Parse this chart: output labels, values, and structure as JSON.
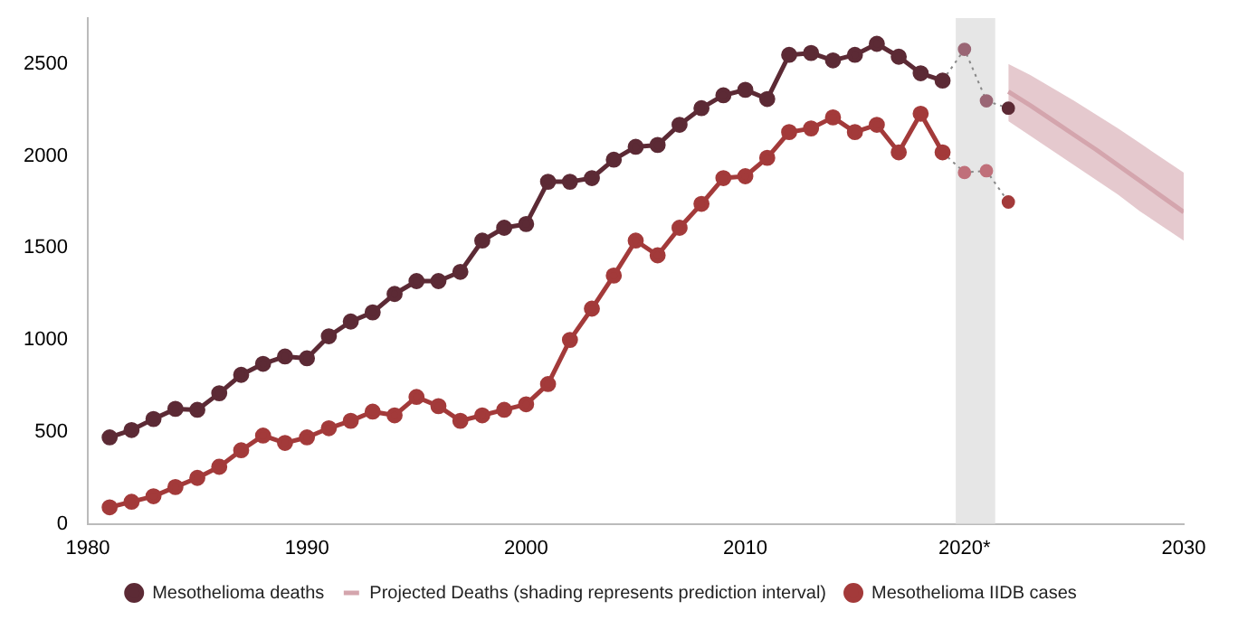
{
  "chart_data": {
    "type": "line",
    "xlim": [
      1980,
      2030
    ],
    "xticks": [
      1980,
      1990,
      2000,
      2010,
      {
        "value": 2020,
        "label": "2020*"
      },
      2030
    ],
    "ylim": [
      0,
      2750
    ],
    "yticks": [
      0,
      500,
      1000,
      1500,
      2000,
      2500
    ],
    "grid": false,
    "legend": "bottom",
    "marker": "circle",
    "bands": [
      {
        "axis": "x",
        "from": 2019.6,
        "to": 2021.4,
        "color": "#e6e6e6"
      }
    ],
    "series": [
      {
        "name": "Mesothelioma deaths",
        "color": "#5c2a35",
        "x": [
          1981,
          1982,
          1983,
          1984,
          1985,
          1986,
          1987,
          1988,
          1989,
          1990,
          1991,
          1992,
          1993,
          1994,
          1995,
          1996,
          1997,
          1998,
          1999,
          2000,
          2001,
          2002,
          2003,
          2004,
          2005,
          2006,
          2007,
          2008,
          2009,
          2010,
          2011,
          2012,
          2013,
          2014,
          2015,
          2016,
          2017,
          2018,
          2019
        ],
        "values": [
          470,
          510,
          570,
          625,
          620,
          710,
          810,
          870,
          910,
          900,
          1020,
          1100,
          1150,
          1250,
          1320,
          1320,
          1370,
          1540,
          1610,
          1630,
          1860,
          1860,
          1880,
          1980,
          2050,
          2060,
          2170,
          2260,
          2330,
          2360,
          2310,
          2550,
          2560,
          2520,
          2550,
          2610,
          2540,
          2450,
          2410
        ]
      },
      {
        "color": "#888888",
        "line_style": "dotted",
        "x": [
          2019,
          2020,
          2021,
          2022
        ],
        "values": [
          2410,
          2580,
          2300,
          2260
        ],
        "colors": [
          "#5c2a35",
          "#9a6675",
          "#9a6675",
          "#5c2a35"
        ]
      },
      {
        "name": "Projected Deaths (shading represents prediction interval)",
        "color": "#d4a5ad",
        "marker": "none",
        "x": [
          2022,
          2023,
          2024,
          2025,
          2026,
          2027,
          2028,
          2029,
          2030
        ],
        "values": [
          2350,
          2275,
          2195,
          2115,
          2035,
          1950,
          1865,
          1780,
          1695
        ],
        "lower": [
          2190,
          2110,
          2030,
          1950,
          1870,
          1790,
          1700,
          1620,
          1540
        ],
        "upper": [
          2500,
          2440,
          2370,
          2300,
          2225,
          2150,
          2070,
          1990,
          1910
        ]
      },
      {
        "name": "Mesothelioma IIDB cases",
        "color": "#a33a3a",
        "x": [
          1981,
          1982,
          1983,
          1984,
          1985,
          1986,
          1987,
          1988,
          1989,
          1990,
          1991,
          1992,
          1993,
          1994,
          1995,
          1996,
          1997,
          1998,
          1999,
          2000,
          2001,
          2002,
          2003,
          2004,
          2005,
          2006,
          2007,
          2008,
          2009,
          2010,
          2011,
          2012,
          2013,
          2014,
          2015,
          2016,
          2017,
          2018,
          2019
        ],
        "values": [
          90,
          120,
          150,
          200,
          250,
          310,
          400,
          480,
          440,
          470,
          520,
          560,
          610,
          590,
          690,
          640,
          560,
          590,
          620,
          650,
          760,
          1000,
          1170,
          1350,
          1540,
          1460,
          1610,
          1740,
          1880,
          1890,
          1990,
          2130,
          2150,
          2210,
          2130,
          2170,
          2020,
          2230,
          2020
        ]
      },
      {
        "color": "#888888",
        "line_style": "dotted",
        "x": [
          2019,
          2020,
          2021,
          2022
        ],
        "values": [
          2020,
          1910,
          1920,
          1750
        ],
        "colors": [
          "#a33a3a",
          "#c0707a",
          "#c0707a",
          "#a33a3a"
        ]
      }
    ]
  }
}
